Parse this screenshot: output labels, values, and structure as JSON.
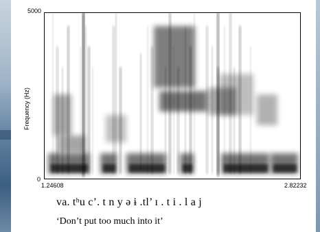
{
  "chart_data": {
    "type": "heatmap",
    "kind": "spectrogram",
    "title": "",
    "xlabel": "",
    "ylabel": "Frequency (Hz)",
    "x_range": [
      1.24608,
      2.82232
    ],
    "y_range": [
      0,
      5000
    ],
    "x_tick_labels": [
      "1.24608",
      "2.82232"
    ],
    "y_tick_labels": [
      "5000",
      "0"
    ],
    "grid": false,
    "colors": {
      "ink": "#000000",
      "background": "#ffffff"
    }
  },
  "caption": {
    "transcription": "va.  tʰu c’. t n y ə   ɨ .tl’ ɪ . t  i . l a j",
    "gloss": "‘Don’t put too much into it’"
  }
}
